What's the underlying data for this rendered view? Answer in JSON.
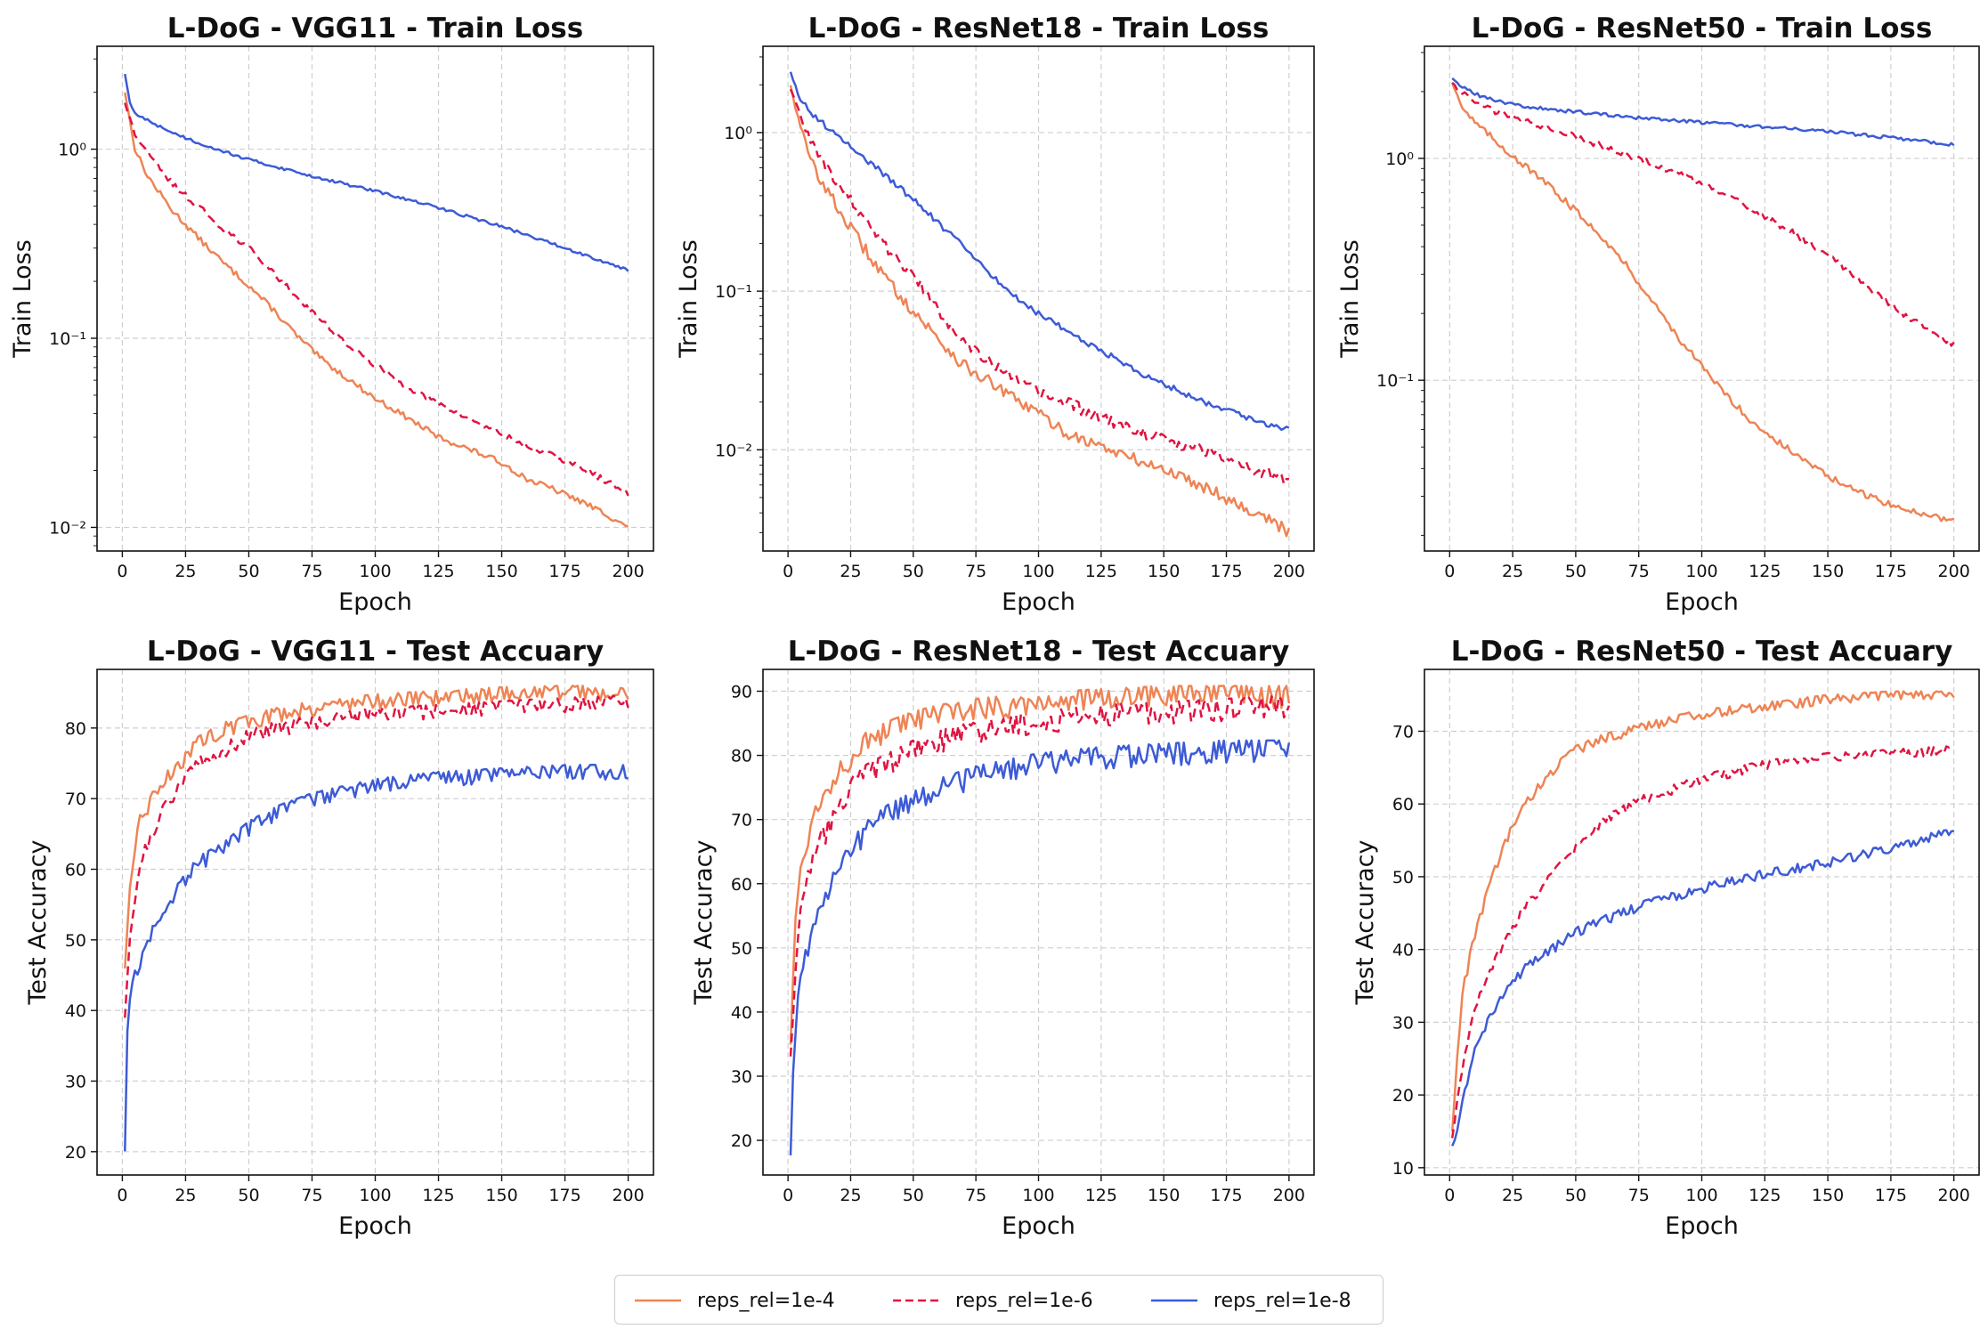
{
  "colors": {
    "s1": "#ee8455",
    "s2": "#e01442",
    "s3": "#3d5bd6"
  },
  "legend": {
    "items": [
      {
        "label": "reps_rel=1e-4",
        "dash": "solid",
        "color": "#ee8455"
      },
      {
        "label": "reps_rel=1e-6",
        "dash": "dashed",
        "color": "#e01442"
      },
      {
        "label": "reps_rel=1e-8",
        "dash": "solid",
        "color": "#3d5bd6"
      }
    ]
  },
  "chart_data": [
    {
      "type": "line",
      "title": "L-DoG - VGG11 - Train Loss",
      "xlabel": "Epoch",
      "ylabel": "Train Loss",
      "yscale": "log",
      "xlim": [
        -10,
        210
      ],
      "ylim": [
        0.0075,
        3.5
      ],
      "xticks": [
        0,
        25,
        50,
        75,
        100,
        125,
        150,
        175,
        200
      ],
      "yticks": [
        {
          "value": 0.01,
          "label": "10⁻²"
        },
        {
          "value": 0.1,
          "label": "10⁻¹"
        },
        {
          "value": 1,
          "label": "10⁰"
        }
      ],
      "grid": true,
      "noise": 0.035,
      "series": [
        {
          "name": "reps_rel=1e-4",
          "x": [
            1,
            5,
            10,
            15,
            20,
            30,
            40,
            50,
            60,
            70,
            80,
            90,
            100,
            110,
            125,
            140,
            150,
            160,
            170,
            180,
            190,
            200
          ],
          "values": [
            2.0,
            1.0,
            0.72,
            0.58,
            0.47,
            0.34,
            0.25,
            0.19,
            0.14,
            0.1,
            0.075,
            0.06,
            0.048,
            0.04,
            0.03,
            0.025,
            0.022,
            0.018,
            0.016,
            0.014,
            0.012,
            0.01
          ]
        },
        {
          "name": "reps_rel=1e-6",
          "x": [
            1,
            5,
            10,
            15,
            20,
            30,
            40,
            50,
            60,
            70,
            80,
            90,
            100,
            110,
            125,
            140,
            150,
            160,
            170,
            180,
            190,
            200
          ],
          "values": [
            1.75,
            1.2,
            0.95,
            0.78,
            0.65,
            0.5,
            0.38,
            0.3,
            0.22,
            0.16,
            0.12,
            0.09,
            0.072,
            0.058,
            0.045,
            0.036,
            0.031,
            0.027,
            0.024,
            0.021,
            0.018,
            0.015
          ]
        },
        {
          "name": "reps_rel=1e-8",
          "x": [
            1,
            3,
            5,
            10,
            20,
            30,
            50,
            75,
            100,
            125,
            150,
            175,
            200
          ],
          "values": [
            2.5,
            1.75,
            1.55,
            1.42,
            1.22,
            1.08,
            0.88,
            0.72,
            0.6,
            0.49,
            0.39,
            0.3,
            0.23
          ]
        }
      ]
    },
    {
      "type": "line",
      "title": "L-DoG - ResNet18 - Train Loss",
      "xlabel": "Epoch",
      "ylabel": "Train Loss",
      "yscale": "log",
      "xlim": [
        -10,
        210
      ],
      "ylim": [
        0.0023,
        3.5
      ],
      "xticks": [
        0,
        25,
        50,
        75,
        100,
        125,
        150,
        175,
        200
      ],
      "yticks": [
        {
          "value": 0.01,
          "label": "10⁻²"
        },
        {
          "value": 0.1,
          "label": "10⁻¹"
        },
        {
          "value": 1,
          "label": "10⁰"
        }
      ],
      "grid": true,
      "noise": 0.09,
      "series": [
        {
          "name": "reps_rel=1e-4",
          "x": [
            1,
            5,
            10,
            15,
            20,
            30,
            40,
            50,
            60,
            70,
            80,
            90,
            100,
            110,
            125,
            140,
            150,
            160,
            170,
            180,
            190,
            200
          ],
          "values": [
            2.0,
            1.05,
            0.62,
            0.45,
            0.33,
            0.19,
            0.115,
            0.075,
            0.05,
            0.034,
            0.027,
            0.021,
            0.017,
            0.013,
            0.0105,
            0.0085,
            0.0075,
            0.0065,
            0.0055,
            0.0045,
            0.0038,
            0.003
          ]
        },
        {
          "name": "reps_rel=1e-6",
          "x": [
            1,
            5,
            10,
            15,
            20,
            30,
            40,
            50,
            60,
            70,
            80,
            90,
            100,
            110,
            125,
            140,
            150,
            160,
            170,
            180,
            190,
            200
          ],
          "values": [
            1.9,
            1.3,
            0.85,
            0.62,
            0.48,
            0.29,
            0.18,
            0.125,
            0.075,
            0.05,
            0.036,
            0.028,
            0.023,
            0.02,
            0.016,
            0.013,
            0.0115,
            0.0105,
            0.0095,
            0.0085,
            0.007,
            0.0065
          ]
        },
        {
          "name": "reps_rel=1e-8",
          "x": [
            1,
            5,
            10,
            20,
            30,
            40,
            50,
            60,
            70,
            80,
            90,
            100,
            110,
            125,
            140,
            150,
            160,
            170,
            180,
            190,
            200
          ],
          "values": [
            2.4,
            1.6,
            1.3,
            0.95,
            0.7,
            0.52,
            0.38,
            0.27,
            0.19,
            0.13,
            0.095,
            0.072,
            0.058,
            0.042,
            0.031,
            0.026,
            0.022,
            0.019,
            0.017,
            0.0145,
            0.0135
          ]
        }
      ]
    },
    {
      "type": "line",
      "title": "L-DoG - ResNet50 - Train Loss",
      "xlabel": "Epoch",
      "ylabel": "Train Loss",
      "yscale": "log",
      "xlim": [
        -10,
        210
      ],
      "ylim": [
        0.017,
        3.2
      ],
      "xticks": [
        0,
        25,
        50,
        75,
        100,
        125,
        150,
        175,
        200
      ],
      "yticks": [
        {
          "value": 0.1,
          "label": "10⁻¹"
        },
        {
          "value": 1,
          "label": "10⁰"
        }
      ],
      "grid": true,
      "noise": 0.035,
      "series": [
        {
          "name": "reps_rel=1e-4",
          "x": [
            1,
            5,
            10,
            20,
            30,
            40,
            50,
            60,
            70,
            80,
            90,
            100,
            110,
            120,
            130,
            140,
            150,
            160,
            170,
            180,
            190,
            200
          ],
          "values": [
            2.2,
            1.7,
            1.45,
            1.15,
            0.92,
            0.74,
            0.58,
            0.45,
            0.33,
            0.23,
            0.16,
            0.115,
            0.085,
            0.065,
            0.053,
            0.044,
            0.037,
            0.032,
            0.029,
            0.026,
            0.025,
            0.023
          ]
        },
        {
          "name": "reps_rel=1e-6",
          "x": [
            1,
            5,
            10,
            20,
            30,
            50,
            75,
            100,
            125,
            150,
            160,
            170,
            180,
            190,
            200
          ],
          "values": [
            2.2,
            1.95,
            1.8,
            1.6,
            1.48,
            1.25,
            1.0,
            0.77,
            0.55,
            0.37,
            0.3,
            0.24,
            0.2,
            0.17,
            0.145
          ]
        },
        {
          "name": "reps_rel=1e-8",
          "x": [
            1,
            5,
            10,
            20,
            30,
            50,
            75,
            100,
            125,
            150,
            175,
            200
          ],
          "values": [
            2.3,
            2.1,
            1.95,
            1.8,
            1.72,
            1.62,
            1.52,
            1.45,
            1.39,
            1.32,
            1.24,
            1.15
          ]
        }
      ]
    },
    {
      "type": "line",
      "title": "L-DoG - VGG11 - Test Accuary",
      "xlabel": "Epoch",
      "ylabel": "Test Accuracy",
      "yscale": "linear",
      "xlim": [
        -10,
        210
      ],
      "ylim": [
        16.7,
        88.3
      ],
      "xticks": [
        0,
        25,
        50,
        75,
        100,
        125,
        150,
        175,
        200
      ],
      "yticks": [
        {
          "value": 20,
          "label": "20"
        },
        {
          "value": 30,
          "label": "30"
        },
        {
          "value": 40,
          "label": "40"
        },
        {
          "value": 50,
          "label": "50"
        },
        {
          "value": 60,
          "label": "60"
        },
        {
          "value": 70,
          "label": "70"
        },
        {
          "value": 80,
          "label": "80"
        }
      ],
      "grid": true,
      "noise": 1.3,
      "series": [
        {
          "name": "reps_rel=1e-4",
          "x": [
            1,
            3,
            5,
            7,
            10,
            15,
            20,
            25,
            30,
            40,
            50,
            60,
            75,
            100,
            125,
            150,
            175,
            200
          ],
          "values": [
            46,
            57,
            62,
            68,
            69,
            72,
            74,
            76,
            78,
            80,
            81,
            82,
            83,
            84,
            84.5,
            85,
            85.2,
            85.2
          ]
        },
        {
          "name": "reps_rel=1e-6",
          "x": [
            1,
            3,
            5,
            7,
            10,
            15,
            20,
            25,
            30,
            40,
            50,
            60,
            75,
            100,
            125,
            150,
            175,
            200
          ],
          "values": [
            39,
            50,
            55,
            60,
            64,
            68,
            70,
            73,
            75,
            77,
            79,
            80,
            81,
            82,
            82.5,
            83,
            83.5,
            83.8
          ]
        },
        {
          "name": "reps_rel=1e-8",
          "x": [
            1,
            2,
            3,
            5,
            10,
            15,
            20,
            25,
            30,
            40,
            50,
            60,
            75,
            100,
            125,
            150,
            175,
            200
          ],
          "values": [
            20,
            37,
            42,
            45,
            50,
            53,
            56,
            59,
            61,
            63,
            66,
            68,
            70,
            72,
            73,
            73.5,
            74,
            74
          ]
        }
      ]
    },
    {
      "type": "line",
      "title": "L-DoG - ResNet18 - Test Accuary",
      "xlabel": "Epoch",
      "ylabel": "Test Accuracy",
      "yscale": "linear",
      "xlim": [
        -10,
        210
      ],
      "ylim": [
        14.6,
        93.4
      ],
      "xticks": [
        0,
        25,
        50,
        75,
        100,
        125,
        150,
        175,
        200
      ],
      "yticks": [
        {
          "value": 20,
          "label": "20"
        },
        {
          "value": 30,
          "label": "30"
        },
        {
          "value": 40,
          "label": "40"
        },
        {
          "value": 50,
          "label": "50"
        },
        {
          "value": 60,
          "label": "60"
        },
        {
          "value": 70,
          "label": "70"
        },
        {
          "value": 80,
          "label": "80"
        },
        {
          "value": 90,
          "label": "90"
        }
      ],
      "grid": true,
      "noise": 2.2,
      "series": [
        {
          "name": "reps_rel=1e-4",
          "x": [
            1,
            3,
            5,
            8,
            12,
            16,
            20,
            25,
            30,
            40,
            50,
            60,
            75,
            100,
            125,
            150,
            175,
            200
          ],
          "values": [
            35,
            55,
            62,
            68,
            72,
            75,
            78,
            80,
            82,
            84,
            85.5,
            86.5,
            87.5,
            88.5,
            89,
            89.5,
            89.5,
            89.5
          ]
        },
        {
          "name": "reps_rel=1e-6",
          "x": [
            1,
            3,
            5,
            8,
            12,
            16,
            20,
            25,
            30,
            40,
            50,
            60,
            75,
            100,
            125,
            150,
            175,
            200
          ],
          "values": [
            33,
            47,
            55,
            62,
            66,
            69,
            71,
            75,
            77,
            79,
            81,
            82.5,
            84,
            85.5,
            86.5,
            87,
            87.5,
            88
          ]
        },
        {
          "name": "reps_rel=1e-8",
          "x": [
            1,
            2,
            4,
            6,
            10,
            15,
            20,
            25,
            30,
            40,
            50,
            60,
            75,
            100,
            125,
            150,
            175,
            200
          ],
          "values": [
            18,
            30,
            42,
            47,
            53,
            58,
            62,
            65,
            68,
            71,
            73,
            75,
            77,
            79,
            80,
            80.5,
            81,
            81
          ]
        }
      ]
    },
    {
      "type": "line",
      "title": "L-DoG - ResNet50 - Test Accuary",
      "xlabel": "Epoch",
      "ylabel": "Test Accuracy",
      "yscale": "linear",
      "xlim": [
        -10,
        210
      ],
      "ylim": [
        9.0,
        78.5
      ],
      "xticks": [
        0,
        25,
        50,
        75,
        100,
        125,
        150,
        175,
        200
      ],
      "yticks": [
        {
          "value": 10,
          "label": "10"
        },
        {
          "value": 20,
          "label": "20"
        },
        {
          "value": 30,
          "label": "30"
        },
        {
          "value": 40,
          "label": "40"
        },
        {
          "value": 50,
          "label": "50"
        },
        {
          "value": 60,
          "label": "60"
        },
        {
          "value": 70,
          "label": "70"
        }
      ],
      "grid": true,
      "noise": 0.8,
      "series": [
        {
          "name": "reps_rel=1e-4",
          "x": [
            1,
            3,
            5,
            8,
            10,
            15,
            20,
            25,
            30,
            40,
            50,
            60,
            75,
            100,
            125,
            150,
            175,
            200
          ],
          "values": [
            15,
            25,
            34,
            39,
            42,
            48,
            53,
            57,
            60,
            64.5,
            67.5,
            69,
            70.5,
            72.5,
            73.5,
            74.5,
            75,
            75
          ]
        },
        {
          "name": "reps_rel=1e-6",
          "x": [
            1,
            3,
            5,
            8,
            10,
            15,
            20,
            25,
            30,
            40,
            50,
            60,
            75,
            100,
            125,
            150,
            175,
            200
          ],
          "values": [
            14,
            19,
            24,
            29,
            32,
            36,
            40,
            43,
            46,
            50,
            54,
            57.5,
            60.5,
            63.5,
            65.5,
            66.5,
            67,
            67.5
          ]
        },
        {
          "name": "reps_rel=1e-8",
          "x": [
            1,
            3,
            5,
            8,
            10,
            15,
            20,
            25,
            30,
            40,
            50,
            60,
            75,
            100,
            125,
            150,
            175,
            200
          ],
          "values": [
            13,
            15,
            19,
            23,
            26,
            30,
            33,
            35.5,
            37.5,
            40,
            42.5,
            44,
            46,
            48.5,
            50.5,
            52,
            54,
            56.5
          ]
        }
      ]
    }
  ]
}
